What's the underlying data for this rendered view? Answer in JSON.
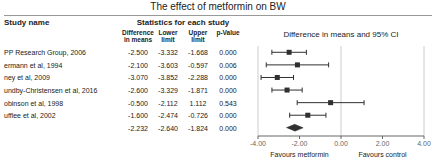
{
  "chart_data": {
    "type": "forest",
    "title": "The effect of metformin on BW",
    "column_headers": {
      "study": "Study name",
      "statistics": "Statistics for each study",
      "forest": "Difference in means and 95% CI",
      "columns": [
        "Difference\nin means",
        "Lower\nlimit",
        "Upper\nlimit",
        "p-Value"
      ]
    },
    "series": [
      {
        "type": "study",
        "marker": "square",
        "color": "#303030",
        "categories": [
          "PP Research Group, 2006",
          "ermann et al, 1994",
          "ney et al, 2009",
          "undby-Christensen et al, 2016",
          "obinson et al, 1998",
          "ufflee et al, 2002"
        ],
        "values": [
          -2.5,
          -2.1,
          -3.07,
          -2.6,
          -0.5,
          -1.6
        ],
        "value_labels": [
          "-2.500",
          "-2.100",
          "-3.070",
          "-2.600",
          "-0.500",
          "-1.600"
        ],
        "lower": [
          -3.332,
          -3.603,
          -3.852,
          -3.329,
          -2.112,
          -2.474
        ],
        "lower_labels": [
          "-3.332",
          "-3.603",
          "-3.852",
          "-3.329",
          "-2.112",
          "-2.474"
        ],
        "upper": [
          -1.668,
          -0.597,
          -2.288,
          -1.871,
          1.112,
          -0.726
        ],
        "upper_labels": [
          "-1.668",
          "-0.597",
          "-2.288",
          "-1.871",
          "1.112",
          "-0.726"
        ],
        "pvalues": [
          0.0,
          0.006,
          0.0,
          0.0,
          0.543,
          0.0
        ],
        "pvalue_labels": [
          "0.000",
          "0.006",
          "0.000",
          "0.000",
          "0.543",
          "0.000"
        ]
      },
      {
        "type": "summary",
        "marker": "diamond",
        "color": "#303030",
        "categories": [
          null
        ],
        "values": [
          -2.232
        ],
        "value_labels": [
          "-2.232"
        ],
        "lower": [
          -2.64
        ],
        "lower_labels": [
          "-2.640"
        ],
        "upper": [
          -1.824
        ],
        "upper_labels": [
          "-1.824"
        ],
        "pvalues": [
          0.0
        ],
        "pvalue_labels": [
          "0.000"
        ]
      }
    ],
    "reference_lines": [
      0,
      -4,
      4
    ],
    "annotations": [
      {
        "text": "Favours metformin",
        "x": -2.0
      },
      {
        "text": "Favours control",
        "x": 2.0
      }
    ],
    "xlim": [
      -4.0,
      4.0
    ],
    "xticks": [
      {
        "value": -4.0,
        "label": "-4.00"
      },
      {
        "value": -2.0,
        "label": "-2.00"
      },
      {
        "value": 0.0,
        "label": "0.00"
      },
      {
        "value": 2.0,
        "label": "2.00"
      },
      {
        "value": 4.0,
        "label": "4.00"
      }
    ],
    "tick_labels": "x",
    "grid": false
  }
}
